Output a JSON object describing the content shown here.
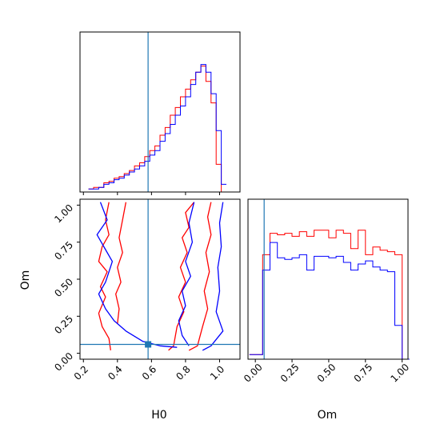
{
  "chart_data": {
    "type": "corner",
    "colors": {
      "red": "#ff0000",
      "blue": "#0000ff",
      "truth": "#1f77b4"
    },
    "truth": {
      "H0": 0.58,
      "Om": 0.06
    },
    "panels": [
      {
        "id": "hist-H0",
        "type": "histogram",
        "xlim": [
          0.18,
          1.12
        ],
        "ylim": [
          0,
          1.0
        ],
        "series": [
          {
            "color": "red",
            "x": [
              0.23,
              0.26,
              0.29,
              0.32,
              0.35,
              0.38,
              0.41,
              0.44,
              0.47,
              0.5,
              0.53,
              0.56,
              0.59,
              0.62,
              0.65,
              0.68,
              0.71,
              0.74,
              0.77,
              0.8,
              0.83,
              0.86,
              0.89,
              0.92,
              0.95,
              0.98,
              1.01
            ],
            "counts": [
              0.02,
              0.03,
              0.03,
              0.06,
              0.07,
              0.09,
              0.1,
              0.12,
              0.14,
              0.17,
              0.19,
              0.23,
              0.27,
              0.3,
              0.37,
              0.42,
              0.5,
              0.55,
              0.62,
              0.67,
              0.73,
              0.78,
              0.82,
              0.72,
              0.58,
              0.18,
              0.0
            ]
          },
          {
            "color": "blue",
            "x": [
              0.23,
              0.26,
              0.29,
              0.32,
              0.35,
              0.38,
              0.41,
              0.44,
              0.47,
              0.5,
              0.53,
              0.56,
              0.59,
              0.62,
              0.65,
              0.68,
              0.71,
              0.74,
              0.77,
              0.8,
              0.83,
              0.86,
              0.89,
              0.92,
              0.95,
              0.98,
              1.01
            ],
            "counts": [
              0.02,
              0.02,
              0.03,
              0.05,
              0.06,
              0.08,
              0.09,
              0.11,
              0.13,
              0.15,
              0.17,
              0.2,
              0.24,
              0.27,
              0.33,
              0.38,
              0.44,
              0.5,
              0.56,
              0.62,
              0.7,
              0.78,
              0.83,
              0.78,
              0.64,
              0.4,
              0.05
            ]
          }
        ]
      },
      {
        "id": "contour-H0-Om",
        "type": "contour",
        "xlabel": "H0",
        "ylabel": "Om",
        "xlim": [
          0.18,
          1.12
        ],
        "ylim": [
          -0.04,
          1.04
        ],
        "xticks": [
          {
            "v": 0.2,
            "label": "0.2"
          },
          {
            "v": 0.4,
            "label": "0.4"
          },
          {
            "v": 0.6,
            "label": "0.6"
          },
          {
            "v": 0.8,
            "label": "0.8"
          },
          {
            "v": 1.0,
            "label": "1.0"
          }
        ],
        "yticks": [
          {
            "v": 0.0,
            "label": "0.00"
          },
          {
            "v": 0.25,
            "label": "0.25"
          },
          {
            "v": 0.5,
            "label": "0.50"
          },
          {
            "v": 0.75,
            "label": "0.75"
          },
          {
            "v": 1.0,
            "label": "1.00"
          }
        ],
        "series": [
          {
            "color": "red",
            "lines": [
              [
                [
                  0.35,
                  1.02
                ],
                [
                  0.33,
                  0.9
                ],
                [
                  0.35,
                  0.8
                ],
                [
                  0.31,
                  0.72
                ],
                [
                  0.29,
                  0.62
                ],
                [
                  0.34,
                  0.55
                ],
                [
                  0.3,
                  0.45
                ],
                [
                  0.33,
                  0.38
                ],
                [
                  0.29,
                  0.27
                ],
                [
                  0.31,
                  0.18
                ],
                [
                  0.35,
                  0.1
                ],
                [
                  0.36,
                  0.02
                ]
              ],
              [
                [
                  0.45,
                  1.02
                ],
                [
                  0.43,
                  0.9
                ],
                [
                  0.41,
                  0.78
                ],
                [
                  0.43,
                  0.68
                ],
                [
                  0.4,
                  0.58
                ],
                [
                  0.42,
                  0.48
                ],
                [
                  0.39,
                  0.4
                ],
                [
                  0.41,
                  0.3
                ],
                [
                  0.4,
                  0.2
                ]
              ],
              [
                [
                  0.85,
                  1.02
                ],
                [
                  0.8,
                  0.95
                ],
                [
                  0.82,
                  0.85
                ],
                [
                  0.78,
                  0.78
                ],
                [
                  0.81,
                  0.68
                ],
                [
                  0.77,
                  0.58
                ],
                [
                  0.8,
                  0.48
                ],
                [
                  0.76,
                  0.38
                ],
                [
                  0.79,
                  0.28
                ],
                [
                  0.75,
                  0.18
                ],
                [
                  0.73,
                  0.05
                ],
                [
                  0.7,
                  0.02
                ]
              ],
              [
                [
                  0.95,
                  1.02
                ],
                [
                  0.93,
                  0.92
                ],
                [
                  0.95,
                  0.8
                ],
                [
                  0.92,
                  0.68
                ],
                [
                  0.94,
                  0.55
                ],
                [
                  0.91,
                  0.42
                ],
                [
                  0.93,
                  0.3
                ],
                [
                  0.9,
                  0.18
                ],
                [
                  0.87,
                  0.05
                ],
                [
                  0.82,
                  0.02
                ]
              ]
            ]
          },
          {
            "color": "blue",
            "lines": [
              [
                [
                  0.3,
                  1.02
                ],
                [
                  0.34,
                  0.9
                ],
                [
                  0.28,
                  0.8
                ],
                [
                  0.33,
                  0.7
                ],
                [
                  0.37,
                  0.62
                ],
                [
                  0.35,
                  0.55
                ],
                [
                  0.33,
                  0.48
                ],
                [
                  0.29,
                  0.4
                ],
                [
                  0.33,
                  0.3
                ],
                [
                  0.38,
                  0.22
                ],
                [
                  0.45,
                  0.15
                ],
                [
                  0.55,
                  0.08
                ],
                [
                  0.65,
                  0.05
                ],
                [
                  0.75,
                  0.04
                ]
              ],
              [
                [
                  0.85,
                  1.02
                ],
                [
                  0.82,
                  0.88
                ],
                [
                  0.84,
                  0.75
                ],
                [
                  0.8,
                  0.62
                ],
                [
                  0.83,
                  0.52
                ],
                [
                  0.78,
                  0.42
                ],
                [
                  0.8,
                  0.32
                ],
                [
                  0.76,
                  0.22
                ],
                [
                  0.78,
                  0.12
                ],
                [
                  0.82,
                  0.05
                ]
              ],
              [
                [
                  1.02,
                  1.02
                ],
                [
                  1.0,
                  0.88
                ],
                [
                  1.01,
                  0.72
                ],
                [
                  0.99,
                  0.58
                ],
                [
                  1.0,
                  0.42
                ],
                [
                  0.98,
                  0.28
                ],
                [
                  1.02,
                  0.15
                ],
                [
                  0.95,
                  0.05
                ],
                [
                  0.9,
                  0.02
                ]
              ]
            ]
          }
        ]
      },
      {
        "id": "hist-Om",
        "type": "histogram",
        "xlabel": "Om",
        "xlim": [
          -0.05,
          1.04
        ],
        "ylim": [
          0,
          1.0
        ],
        "xticks": [
          {
            "v": 0.0,
            "label": "0.00"
          },
          {
            "v": 0.25,
            "label": "0.25"
          },
          {
            "v": 0.5,
            "label": "0.50"
          },
          {
            "v": 0.75,
            "label": "0.75"
          },
          {
            "v": 1.0,
            "label": "1.00"
          }
        ],
        "series": [
          {
            "color": "red",
            "x": [
              -0.04,
              0.0,
              0.05,
              0.1,
              0.15,
              0.2,
              0.25,
              0.3,
              0.35,
              0.4,
              0.45,
              0.5,
              0.55,
              0.6,
              0.65,
              0.7,
              0.75,
              0.8,
              0.85,
              0.9,
              0.95,
              1.0
            ],
            "counts": [
              0.03,
              0.03,
              0.68,
              0.82,
              0.81,
              0.82,
              0.8,
              0.83,
              0.8,
              0.84,
              0.84,
              0.79,
              0.84,
              0.82,
              0.72,
              0.84,
              0.68,
              0.73,
              0.71,
              0.7,
              0.68,
              0.0
            ]
          },
          {
            "color": "blue",
            "x": [
              -0.04,
              0.0,
              0.05,
              0.1,
              0.15,
              0.2,
              0.25,
              0.3,
              0.35,
              0.4,
              0.45,
              0.5,
              0.55,
              0.6,
              0.65,
              0.7,
              0.75,
              0.8,
              0.85,
              0.9,
              0.95,
              1.0
            ],
            "counts": [
              0.03,
              0.03,
              0.58,
              0.76,
              0.66,
              0.65,
              0.66,
              0.68,
              0.58,
              0.67,
              0.67,
              0.66,
              0.67,
              0.63,
              0.58,
              0.62,
              0.64,
              0.6,
              0.58,
              0.57,
              0.22,
              0.0
            ]
          }
        ]
      }
    ]
  }
}
